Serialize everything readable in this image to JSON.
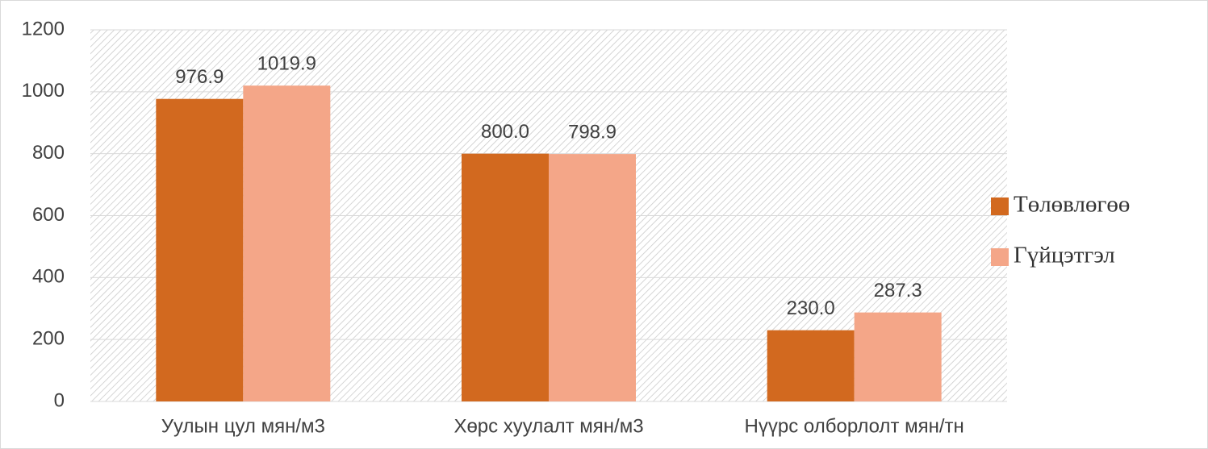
{
  "chart_data": {
    "type": "bar",
    "categories": [
      "Уулын цул мян/м3",
      "Хөрс хуулалт мян/м3",
      "Нүүрс олборлолт мян/тн"
    ],
    "series": [
      {
        "name": "Төлөвлөгөө",
        "color": "#d2691f",
        "values": [
          976.9,
          800.0,
          230.0
        ],
        "value_labels": [
          "976.9",
          "800.0",
          "230.0"
        ]
      },
      {
        "name": "Гүйцэтгэл",
        "color": "#f4a688",
        "values": [
          1019.9,
          798.9,
          287.3
        ],
        "value_labels": [
          "1019.9",
          "798.9",
          "287.3"
        ]
      }
    ],
    "ylim": [
      0,
      1200
    ],
    "yticks": [
      0,
      200,
      400,
      600,
      800,
      1000,
      1200
    ],
    "grid": true,
    "legend": "right"
  }
}
